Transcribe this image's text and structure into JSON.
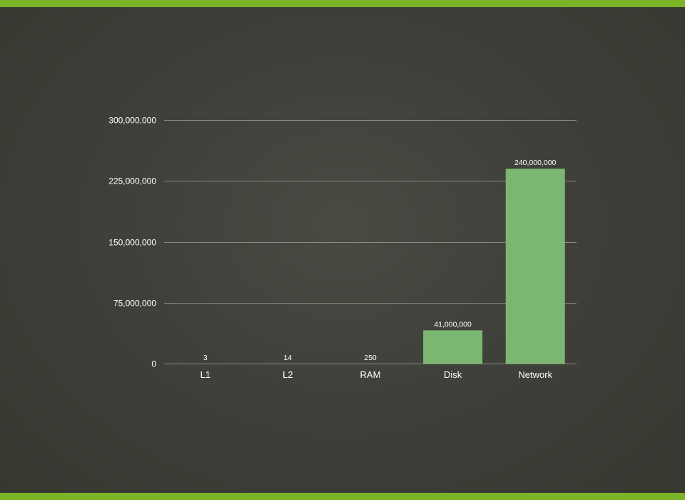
{
  "colors": {
    "accent": "#7cb427",
    "bar": "#7cb771",
    "gridline": "#8a8b84",
    "text": "#ffffff"
  },
  "chart_data": {
    "type": "bar",
    "categories": [
      "L1",
      "L2",
      "RAM",
      "Disk",
      "Network"
    ],
    "values": [
      3,
      14,
      250,
      41000000,
      240000000
    ],
    "data_labels": [
      "3",
      "14",
      "250",
      "41,000,000",
      "240,000,000"
    ],
    "ylim": [
      0,
      300000000
    ],
    "yticks": [
      0,
      75000000,
      150000000,
      225000000,
      300000000
    ],
    "ytick_labels": [
      "0",
      "75,000,000",
      "150,000,000",
      "225,000,000",
      "300,000,000"
    ],
    "title": "",
    "xlabel": "",
    "ylabel": "",
    "grid": true,
    "legend": "none"
  }
}
